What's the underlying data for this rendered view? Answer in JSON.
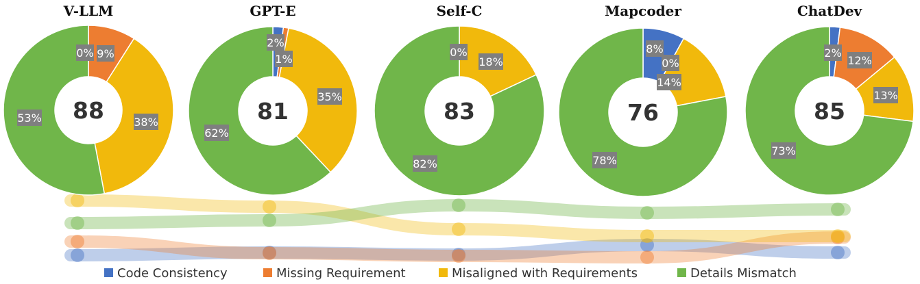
{
  "chart_data": {
    "type": "pie",
    "style": "donut",
    "categories": [
      "Code Consistency",
      "Missing Requirement",
      "Misaligned with Requirements",
      "Details Mismatch"
    ],
    "colors": [
      "#4472c4",
      "#ed7d31",
      "#f1b90c",
      "#70b64a"
    ],
    "charts": [
      {
        "title": "V-LLM",
        "center_value": "88",
        "values": [
          0,
          9,
          38,
          53
        ],
        "labels": [
          "0%",
          "9%",
          "38%",
          "53%"
        ]
      },
      {
        "title": "GPT-E",
        "center_value": "81",
        "values": [
          2,
          1,
          35,
          62
        ],
        "labels": [
          "2%",
          "1%",
          "35%",
          "62%"
        ]
      },
      {
        "title": "Self-C",
        "center_value": "83",
        "values": [
          0,
          0,
          18,
          82
        ],
        "labels": [
          "0%",
          "",
          "18%",
          "82%"
        ]
      },
      {
        "title": "Mapcoder",
        "center_value": "76",
        "values": [
          8,
          0,
          14,
          78
        ],
        "labels": [
          "8%",
          "0%",
          "14%",
          "78%"
        ]
      },
      {
        "title": "ChatDev",
        "center_value": "85",
        "values": [
          2,
          12,
          13,
          73
        ],
        "labels": [
          "2%",
          "12%",
          "13%",
          "73%"
        ]
      }
    ],
    "legend": {
      "placement": "bottom",
      "items": [
        "Code Consistency",
        "Missing Requirement",
        "Misaligned with Requirements",
        "Details Mismatch"
      ]
    }
  }
}
